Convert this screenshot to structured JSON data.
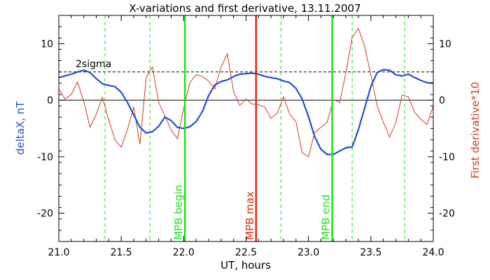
{
  "chart_data": {
    "type": "line",
    "title": "X-variations and first derivative, 13.11.2007",
    "xlabel": "UT, hours",
    "ylabel_left": "deltaX, nT",
    "ylabel_right": "First derivative*10",
    "xlim": [
      21.0,
      24.0
    ],
    "ylim": [
      -25,
      15
    ],
    "x_ticks": [
      "21.0",
      "21.5",
      "22.0",
      "22.5",
      "23.0",
      "23.5",
      "24.0"
    ],
    "y_ticks": [
      "10",
      "0",
      "-10",
      "-20"
    ],
    "y_tick_values": [
      10,
      0,
      -10,
      -20
    ],
    "threshold": {
      "label": "2sigma",
      "value": 5
    },
    "zero_line": 0,
    "colors": {
      "deltax": "#1f4fd6",
      "derivative": "#d23a1e",
      "mpb_edge": "#22e022",
      "mpb_max": "#e02a10",
      "dashed_green": "#22e022"
    },
    "dashed_green_lines": [
      21.37,
      21.73,
      22.78,
      23.35,
      23.77
    ],
    "markers": [
      {
        "x": 22.01,
        "label": "MPB begin",
        "kind": "edge"
      },
      {
        "x": 22.58,
        "label": "MPB max",
        "kind": "max"
      },
      {
        "x": 23.19,
        "label": "MPB end",
        "kind": "edge"
      }
    ],
    "series": [
      {
        "name": "deltaX, nT",
        "x": [
          21.0,
          21.05,
          21.1,
          21.15,
          21.2,
          21.25,
          21.3,
          21.35,
          21.4,
          21.45,
          21.5,
          21.55,
          21.6,
          21.65,
          21.7,
          21.75,
          21.8,
          21.85,
          21.9,
          21.95,
          22.0,
          22.05,
          22.1,
          22.15,
          22.2,
          22.25,
          22.3,
          22.35,
          22.4,
          22.45,
          22.5,
          22.55,
          22.6,
          22.65,
          22.7,
          22.75,
          22.8,
          22.85,
          22.9,
          22.95,
          23.0,
          23.05,
          23.1,
          23.15,
          23.2,
          23.25,
          23.3,
          23.35,
          23.4,
          23.45,
          23.5,
          23.55,
          23.6,
          23.65,
          23.7,
          23.75,
          23.8,
          23.85,
          23.9,
          23.95,
          24.0
        ],
        "values": [
          4.0,
          4.3,
          4.6,
          5.0,
          5.3,
          4.9,
          3.8,
          2.9,
          2.6,
          2.4,
          1.4,
          -0.4,
          -2.6,
          -4.8,
          -5.8,
          -5.6,
          -4.6,
          -3.0,
          -3.6,
          -4.8,
          -5.0,
          -4.7,
          -3.8,
          -2.0,
          0.8,
          2.7,
          3.3,
          3.6,
          4.2,
          4.6,
          4.7,
          4.8,
          4.6,
          4.2,
          4.0,
          3.8,
          3.4,
          3.1,
          2.1,
          0.2,
          -2.9,
          -6.5,
          -8.7,
          -9.6,
          -9.6,
          -9.0,
          -8.4,
          -8.3,
          -5.2,
          -1.4,
          2.4,
          4.9,
          5.4,
          5.3,
          4.5,
          4.3,
          4.6,
          4.0,
          3.5,
          3.1,
          3.0
        ]
      },
      {
        "name": "First derivative*10",
        "x": [
          21.0,
          21.05,
          21.1,
          21.15,
          21.2,
          21.25,
          21.3,
          21.35,
          21.4,
          21.45,
          21.5,
          21.55,
          21.6,
          21.65,
          21.7,
          21.75,
          21.8,
          21.85,
          21.9,
          21.95,
          22.0,
          22.05,
          22.1,
          22.15,
          22.2,
          22.25,
          22.3,
          22.35,
          22.4,
          22.45,
          22.5,
          22.55,
          22.6,
          22.65,
          22.7,
          22.75,
          22.8,
          22.85,
          22.9,
          22.95,
          23.0,
          23.05,
          23.1,
          23.15,
          23.2,
          23.25,
          23.3,
          23.35,
          23.4,
          23.45,
          23.5,
          23.55,
          23.6,
          23.65,
          23.7,
          23.75,
          23.8,
          23.85,
          23.9,
          23.95,
          24.0
        ],
        "values": [
          2.0,
          0.2,
          1.0,
          3.2,
          -0.2,
          -4.8,
          -2.5,
          0.5,
          -3.5,
          -7.0,
          -8.3,
          -5.2,
          -1.2,
          -7.8,
          4.0,
          5.9,
          -0.4,
          -2.8,
          -5.3,
          -6.8,
          -1.5,
          3.1,
          4.5,
          4.2,
          3.4,
          2.0,
          5.9,
          8.2,
          1.5,
          -0.9,
          0.2,
          -0.7,
          -0.8,
          -1.2,
          -3.2,
          -2.3,
          0.6,
          -2.5,
          -3.8,
          -9.3,
          -10.0,
          -5.7,
          -4.8,
          -3.9,
          0.1,
          -0.4,
          4.9,
          11.1,
          12.7,
          9.5,
          4.5,
          -1.0,
          -3.9,
          -6.5,
          -4.0,
          0.9,
          0.6,
          -2.1,
          -3.4,
          -4.3,
          -1.0
        ]
      }
    ]
  }
}
